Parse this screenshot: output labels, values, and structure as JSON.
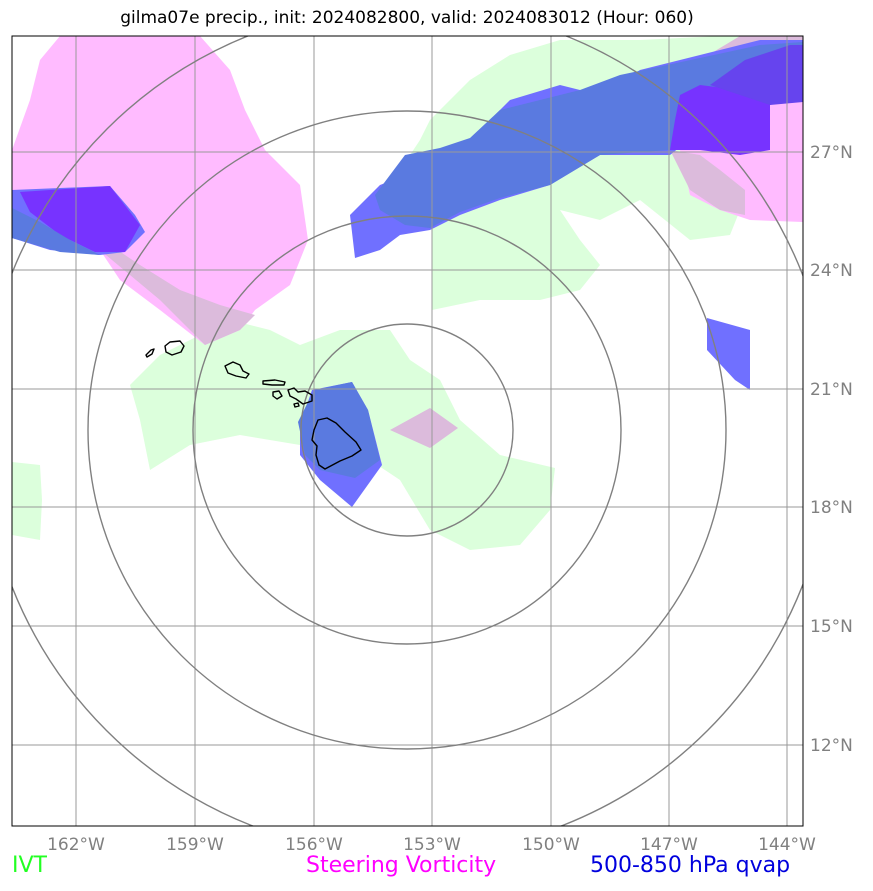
{
  "title": "gilma07e precip., init: 2024082800, valid: 2024083012 (Hour: 060)",
  "lat_labels": [
    "27°N",
    "24°N",
    "21°N",
    "18°N",
    "15°N",
    "12°N"
  ],
  "lon_labels": [
    "162°W",
    "159°W",
    "156°W",
    "153°W",
    "150°W",
    "147°W",
    "144°W"
  ],
  "legend": {
    "ivt": {
      "label": "IVT",
      "color": "#22ff22"
    },
    "vorticity": {
      "label": "Steering Vorticity",
      "color": "#ff00ff"
    },
    "qvap": {
      "label": "500-850 hPa qvap",
      "color": "#0000dd"
    }
  },
  "fill_colors": {
    "ivt": "#dcffdc",
    "vorticity": "#ffbbff",
    "vorticity_over_ivt": "#dcbbdc",
    "qvap_light": "#7070ff",
    "qvap_mid": "#5a7ae0",
    "qvap_dark": "#6644ee",
    "qvap_purple": "#7733ff"
  },
  "grid_color": "#999999",
  "ring_color": "#808080",
  "tick_label_color": "#808080",
  "map_extent": {
    "lon": [
      -163.6,
      -143.6
    ],
    "lat": [
      10.0,
      30.0
    ]
  },
  "range_rings_center": {
    "lon": -154.0,
    "lat": 19.8
  }
}
